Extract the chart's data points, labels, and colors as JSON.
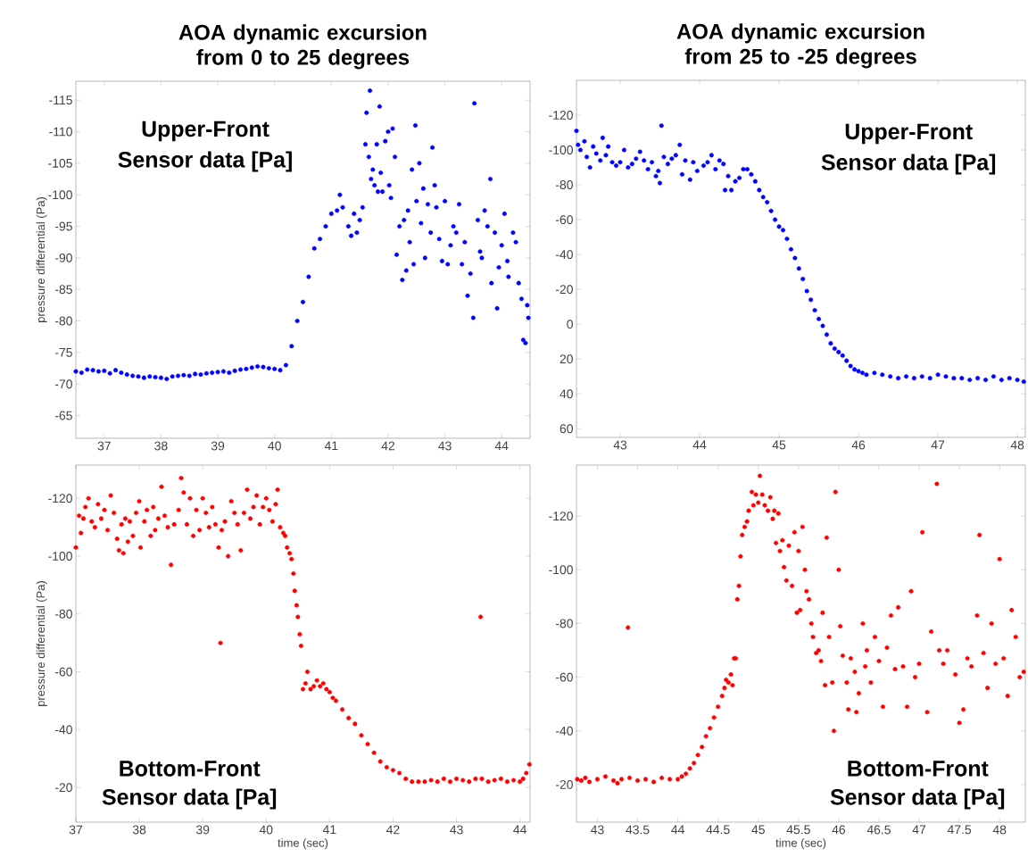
{
  "chart_data": [
    {
      "type": "scatter",
      "title": "AOA dynamic excursion from 0 to 25 degrees",
      "ylabel": "pressure differential (Pa)",
      "annotations": [
        "Upper-Front",
        "Sensor data [Pa]"
      ],
      "color": "#0000ff",
      "marker": "circle",
      "xlim": [
        36.5,
        44.5
      ],
      "ylim": [
        -61.4,
        -118
      ],
      "xticks": [
        37,
        38,
        39,
        40,
        41,
        42,
        43,
        44
      ],
      "yticks": [
        -115,
        -110,
        -105,
        -100,
        -95,
        -90,
        -85,
        -80,
        -75,
        -70,
        -65
      ],
      "x": [
        36.5,
        36.6,
        36.7,
        36.8,
        36.9,
        37.0,
        37.1,
        37.2,
        37.3,
        37.4,
        37.5,
        37.6,
        37.7,
        37.8,
        37.9,
        38.0,
        38.1,
        38.2,
        38.3,
        38.4,
        38.5,
        38.6,
        38.7,
        38.8,
        38.9,
        39.0,
        39.1,
        39.2,
        39.3,
        39.4,
        39.5,
        39.6,
        39.7,
        39.8,
        39.9,
        40.0,
        40.1,
        40.2,
        40.3,
        40.4,
        40.5,
        40.6,
        40.7,
        40.8,
        40.9,
        41.0,
        41.1,
        41.15,
        41.2,
        41.3,
        41.35,
        41.4,
        41.45,
        41.5,
        41.55,
        41.6,
        41.62,
        41.66,
        41.68,
        41.7,
        41.73,
        41.76,
        41.8,
        41.82,
        41.85,
        41.87,
        41.9,
        41.95,
        42.0,
        42.02,
        42.05,
        42.08,
        42.12,
        42.15,
        42.2,
        42.25,
        42.28,
        42.32,
        42.35,
        42.38,
        42.42,
        42.45,
        42.48,
        42.5,
        42.55,
        42.58,
        42.62,
        42.65,
        42.7,
        42.75,
        42.78,
        42.82,
        42.85,
        42.9,
        42.95,
        43.0,
        43.05,
        43.1,
        43.15,
        43.2,
        43.25,
        43.3,
        43.35,
        43.4,
        43.45,
        43.5,
        43.52,
        43.58,
        43.62,
        43.65,
        43.7,
        43.75,
        43.8,
        43.82,
        43.88,
        43.92,
        43.95,
        44.0,
        44.05,
        44.1,
        44.12,
        44.2,
        44.25,
        44.3,
        44.35,
        44.38,
        44.42,
        44.45,
        44.47
      ],
      "values": [
        -72,
        -71.8,
        -72.3,
        -72.2,
        -72,
        -72.1,
        -71.7,
        -72.2,
        -71.8,
        -71.5,
        -71.3,
        -71.2,
        -71,
        -71.2,
        -71.1,
        -71,
        -70.8,
        -71.2,
        -71.3,
        -71.4,
        -71.3,
        -71.6,
        -71.5,
        -71.7,
        -71.8,
        -71.9,
        -72,
        -71.8,
        -72.1,
        -72.3,
        -72.4,
        -72.6,
        -72.8,
        -72.7,
        -72.5,
        -72.4,
        -72.2,
        -73,
        -76,
        -80,
        -83,
        -87,
        -91.5,
        -93,
        -95,
        -97,
        -97.5,
        -100,
        -98,
        -95,
        -93.5,
        -97,
        -94,
        -96,
        -98,
        -108,
        -113,
        -106,
        -116.5,
        -102.5,
        -104,
        -101.5,
        -108,
        -100.5,
        -114,
        -103.5,
        -100.5,
        -108.5,
        -110,
        -101.5,
        -99.5,
        -110.5,
        -106,
        -90.5,
        -95,
        -86.5,
        -96,
        -88,
        -97.5,
        -92.5,
        -104,
        -89,
        -111,
        -99,
        -105,
        -95.5,
        -101,
        -90,
        -98.5,
        -94,
        -107.5,
        -101.5,
        -98,
        -93,
        -89.5,
        -99,
        -89,
        -92,
        -95,
        -94,
        -98.5,
        -89,
        -92.5,
        -84,
        -87.5,
        -80.5,
        -114.5,
        -96,
        -91,
        -90,
        -97.5,
        -95,
        -102.5,
        -86,
        -94,
        -82,
        -88.5,
        -92,
        -97,
        -89.5,
        -87,
        -94,
        -92.5,
        -86,
        -83.5,
        -77,
        -76.5,
        -82.5,
        -80.5
      ]
    },
    {
      "type": "scatter",
      "title": "AOA dynamic excursion from 25 to -25 degrees",
      "annotations": [
        "Upper-Front",
        "Sensor data [Pa]"
      ],
      "color": "#0000ff",
      "marker": "circle",
      "xlim": [
        42.45,
        48.1
      ],
      "ylim": [
        65,
        -140
      ],
      "xticks": [
        43,
        44,
        45,
        46,
        47,
        48
      ],
      "yticks": [
        -120,
        -100,
        -80,
        -60,
        -40,
        -20,
        0,
        20,
        40,
        60
      ],
      "x": [
        42.45,
        42.47,
        42.5,
        42.55,
        42.58,
        42.62,
        42.66,
        42.7,
        42.75,
        42.78,
        42.82,
        42.85,
        42.9,
        42.95,
        43.0,
        43.05,
        43.1,
        43.15,
        43.2,
        43.25,
        43.3,
        43.35,
        43.4,
        43.45,
        43.48,
        43.5,
        43.52,
        43.55,
        43.6,
        43.65,
        43.7,
        43.75,
        43.78,
        43.82,
        43.88,
        43.92,
        43.97,
        44.05,
        44.1,
        44.15,
        44.2,
        44.25,
        44.3,
        44.32,
        44.36,
        44.4,
        44.45,
        44.5,
        44.55,
        44.6,
        44.65,
        44.7,
        44.75,
        44.8,
        44.85,
        44.9,
        44.95,
        45.0,
        45.05,
        45.1,
        45.15,
        45.2,
        45.25,
        45.3,
        45.35,
        45.4,
        45.45,
        45.5,
        45.55,
        45.6,
        45.65,
        45.7,
        45.75,
        45.8,
        45.85,
        45.9,
        45.95,
        46.0,
        46.05,
        46.1,
        46.2,
        46.3,
        46.4,
        46.5,
        46.6,
        46.7,
        46.8,
        46.9,
        47.0,
        47.1,
        47.2,
        47.3,
        47.4,
        47.5,
        47.6,
        47.7,
        47.8,
        47.9,
        48.0,
        48.08
      ],
      "values": [
        -111,
        -103,
        -100,
        -105,
        -96,
        -90,
        -102,
        -98,
        -94,
        -107,
        -97,
        -102,
        -93,
        -91,
        -93,
        -100,
        -90,
        -92,
        -95,
        -99,
        -94,
        -89,
        -93,
        -85,
        -88,
        -81,
        -114,
        -96,
        -92,
        -95,
        -97,
        -103,
        -86,
        -94,
        -83,
        -93,
        -88,
        -91,
        -93,
        -97,
        -89,
        -94,
        -92,
        -77,
        -85,
        -77,
        -82,
        -84,
        -89,
        -89,
        -86,
        -82,
        -77,
        -73,
        -70,
        -65,
        -60,
        -56,
        -54,
        -49,
        -43,
        -38,
        -32,
        -26,
        -19,
        -14,
        -8,
        -3,
        1,
        6,
        11,
        14,
        16,
        18,
        21,
        24,
        26,
        27,
        28,
        29,
        28,
        29,
        30,
        31,
        30,
        31,
        30,
        31,
        29,
        30,
        31,
        31,
        32,
        31,
        32,
        30,
        32,
        31,
        32,
        33
      ]
    },
    {
      "type": "scatter",
      "xlabel": "time (sec)",
      "ylabel": "pressure differential (Pa)",
      "annotations": [
        "Bottom-Front",
        "Sensor data [Pa]"
      ],
      "color": "#ff0000",
      "marker": "circle",
      "xlim": [
        37,
        44.16
      ],
      "ylim": [
        -8,
        -131.5
      ],
      "xticks": [
        37,
        38,
        39,
        40,
        41,
        42,
        43,
        44
      ],
      "yticks": [
        -120,
        -100,
        -80,
        -60,
        -40,
        -20
      ],
      "x": [
        37.0,
        37.05,
        37.08,
        37.12,
        37.15,
        37.2,
        37.25,
        37.3,
        37.35,
        37.4,
        37.45,
        37.5,
        37.55,
        37.6,
        37.65,
        37.68,
        37.72,
        37.75,
        37.78,
        37.82,
        37.85,
        37.9,
        37.95,
        38.0,
        38.02,
        38.08,
        38.12,
        38.18,
        38.22,
        38.25,
        38.3,
        38.35,
        38.4,
        38.45,
        38.5,
        38.55,
        38.62,
        38.66,
        38.7,
        38.75,
        38.8,
        38.85,
        38.9,
        38.95,
        39.0,
        39.05,
        39.1,
        39.15,
        39.2,
        39.25,
        39.28,
        39.3,
        39.35,
        39.4,
        39.45,
        39.5,
        39.55,
        39.6,
        39.65,
        39.7,
        39.75,
        39.8,
        39.85,
        39.9,
        39.95,
        40.0,
        40.05,
        40.1,
        40.15,
        40.18,
        40.22,
        40.27,
        40.3,
        40.33,
        40.37,
        40.4,
        40.43,
        40.45,
        40.48,
        40.5,
        40.53,
        40.55,
        40.58,
        40.62,
        40.65,
        40.7,
        40.75,
        40.8,
        40.85,
        40.9,
        40.95,
        41.0,
        41.05,
        41.1,
        41.2,
        41.3,
        41.4,
        41.5,
        41.6,
        41.7,
        41.8,
        41.9,
        42.0,
        42.1,
        42.2,
        42.3,
        42.4,
        42.5,
        42.6,
        42.7,
        42.8,
        42.9,
        43.0,
        43.1,
        43.2,
        43.3,
        43.38,
        43.4,
        43.5,
        43.6,
        43.7,
        43.8,
        43.9,
        44.0,
        44.05,
        44.1,
        44.15
      ],
      "values": [
        -103,
        -114,
        -108,
        -113,
        -117,
        -120,
        -112,
        -110,
        -118,
        -113,
        -116,
        -109,
        -121,
        -115,
        -106,
        -102,
        -111,
        -101,
        -113,
        -105,
        -112,
        -107,
        -115,
        -119,
        -103,
        -112,
        -116,
        -107,
        -117,
        -109,
        -113,
        -124,
        -114,
        -110,
        -97,
        -111,
        -116,
        -127,
        -122,
        -111,
        -120,
        -107,
        -116,
        -109,
        -120,
        -115,
        -110,
        -117,
        -111,
        -103,
        -70,
        -109,
        -112,
        -100,
        -119,
        -115,
        -111,
        -102,
        -115,
        -123,
        -113,
        -117,
        -121,
        -111,
        -117,
        -120,
        -116,
        -112,
        -118,
        -123,
        -110,
        -108,
        -107,
        -103,
        -101,
        -99,
        -94,
        -88,
        -83,
        -79,
        -73,
        -69,
        -54,
        -56,
        -60,
        -54,
        -55,
        -57,
        -55,
        -56,
        -54,
        -53,
        -51,
        -50,
        -47,
        -44,
        -42,
        -38,
        -35,
        -32,
        -29,
        -27,
        -26,
        -25,
        -23,
        -22,
        -22,
        -22,
        -22.5,
        -22,
        -23,
        -22,
        -23,
        -22.5,
        -22,
        -23,
        -79,
        -23,
        -22,
        -22.5,
        -23,
        -22,
        -22.5,
        -22,
        -23,
        -25,
        -28
      ]
    },
    {
      "type": "scatter",
      "xlabel": "time (sec)",
      "annotations": [
        "Bottom-Front",
        "Sensor data [Pa]"
      ],
      "color": "#ff0000",
      "marker": "circle",
      "xlim": [
        42.74,
        48.32
      ],
      "ylim": [
        -6,
        -139
      ],
      "xticks": [
        43,
        43.5,
        44,
        44.5,
        45,
        45.5,
        46,
        46.5,
        47,
        47.5,
        48
      ],
      "yticks": [
        -120,
        -100,
        -80,
        -60,
        -40,
        -20
      ],
      "x": [
        42.75,
        42.8,
        42.85,
        42.9,
        43.0,
        43.1,
        43.2,
        43.25,
        43.3,
        43.38,
        43.4,
        43.5,
        43.6,
        43.7,
        43.8,
        43.9,
        44.0,
        44.05,
        44.1,
        44.15,
        44.2,
        44.25,
        44.3,
        44.35,
        44.4,
        44.45,
        44.5,
        44.55,
        44.58,
        44.6,
        44.63,
        44.66,
        44.68,
        44.7,
        44.72,
        44.74,
        44.76,
        44.78,
        44.8,
        44.83,
        44.86,
        44.88,
        44.92,
        44.94,
        44.97,
        45.0,
        45.02,
        45.05,
        45.08,
        45.12,
        45.15,
        45.18,
        45.2,
        45.22,
        45.25,
        45.27,
        45.3,
        45.32,
        45.35,
        45.38,
        45.42,
        45.45,
        45.48,
        45.5,
        45.52,
        45.55,
        45.58,
        45.6,
        45.63,
        45.66,
        45.68,
        45.72,
        45.75,
        45.78,
        45.8,
        45.83,
        45.85,
        45.88,
        45.92,
        45.94,
        45.96,
        46.0,
        46.02,
        46.05,
        46.1,
        46.12,
        46.15,
        46.2,
        46.22,
        46.25,
        46.3,
        46.33,
        46.35,
        46.4,
        46.45,
        46.5,
        46.55,
        46.6,
        46.65,
        46.7,
        46.74,
        46.8,
        46.85,
        46.9,
        46.95,
        47.0,
        47.04,
        47.1,
        47.15,
        47.22,
        47.25,
        47.3,
        47.35,
        47.45,
        47.5,
        47.55,
        47.6,
        47.65,
        47.72,
        47.75,
        47.8,
        47.85,
        47.9,
        47.95,
        48.0,
        48.05,
        48.1,
        48.15,
        48.2,
        48.25,
        48.3
      ],
      "values": [
        -22,
        -21.5,
        -22.5,
        -21,
        -22,
        -23,
        -21.5,
        -20.5,
        -22,
        -78.5,
        -22.5,
        -21.5,
        -22,
        -21,
        -22.5,
        -22,
        -22,
        -23,
        -24,
        -26,
        -28,
        -31,
        -34,
        -38,
        -41,
        -45,
        -49,
        -53,
        -56,
        -59,
        -58,
        -61,
        -57,
        -67,
        -67,
        -89,
        -94,
        -105,
        -113,
        -116,
        -118,
        -122,
        -129,
        -124,
        -128,
        -125,
        -135,
        -128,
        -124,
        -122,
        -127,
        -119,
        -122,
        -110,
        -121,
        -107,
        -111,
        -101,
        -96,
        -109,
        -94,
        -114,
        -84,
        -107,
        -85,
        -116,
        -100,
        -92,
        -89,
        -80,
        -75,
        -69,
        -70,
        -66,
        -84,
        -57,
        -112,
        -75,
        -58,
        -40,
        -129,
        -100,
        -79,
        -68,
        -58,
        -48,
        -67,
        -62,
        -47,
        -54,
        -80,
        -64,
        -70,
        -58,
        -75,
        -66,
        -49,
        -71,
        -83,
        -63,
        -86,
        -64,
        -49,
        -92,
        -60,
        -65,
        -114,
        -47,
        -77,
        -132,
        -70,
        -65,
        -70,
        -61,
        -43,
        -48,
        -67,
        -64,
        -83,
        -113,
        -69,
        -56,
        -80,
        -65,
        -104,
        -67,
        -53,
        -85,
        -75,
        -60,
        -62
      ]
    }
  ]
}
